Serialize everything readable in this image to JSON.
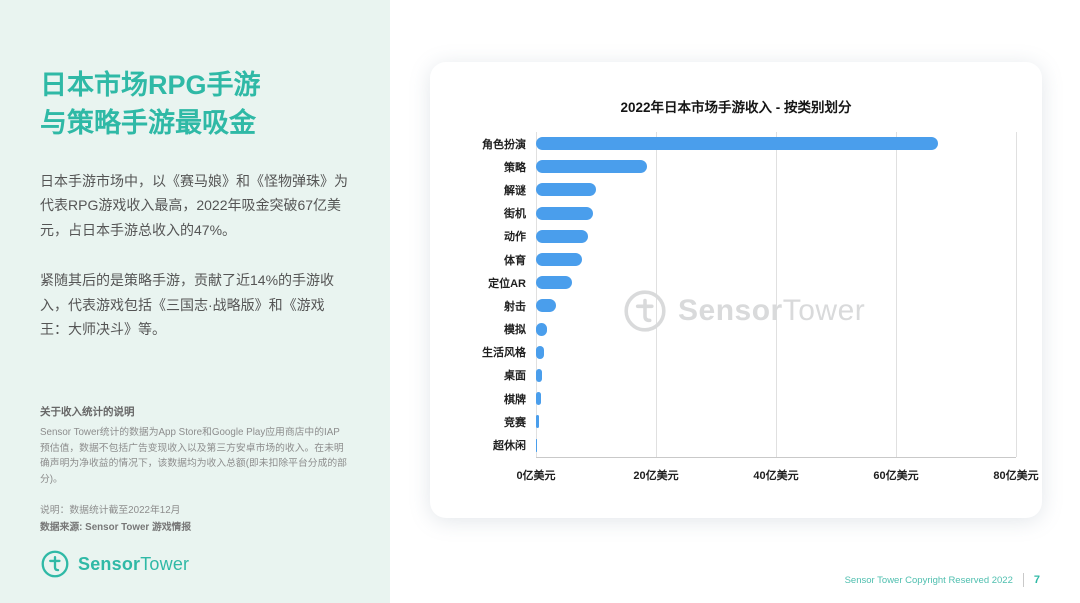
{
  "sidebar": {
    "title_line1": "日本市场RPG手游",
    "title_line2": "与策略手游最吸金",
    "para1": "日本手游市场中，以《赛马娘》和《怪物弹珠》为代表RPG游戏收入最高，2022年吸金突破67亿美元，占日本手游总收入的47%。",
    "para2": "紧随其后的是策略手游，贡献了近14%的手游收入，代表游戏包括《三国志·战略版》和《游戏王：大师决斗》等。",
    "note_title": "关于收入统计的说明",
    "note_body": "Sensor Tower统计的数据为App Store和Google Play应用商店中的IAP预估值，数据不包括广告变现收入以及第三方安卓市场的收入。在未明确声明为净收益的情况下，该数据均为收入总额(即未扣除平台分成的部分)。",
    "note_line1": "说明：数据统计截至2022年12月",
    "note_line2": "数据来源: Sensor Tower 游戏情报",
    "logo_bold": "Sensor",
    "logo_light": "Tower"
  },
  "chart_data": {
    "type": "bar",
    "orientation": "horizontal",
    "title": "2022年日本市场手游收入 - 按类别划分",
    "categories": [
      "角色扮演",
      "策略",
      "解谜",
      "街机",
      "动作",
      "体育",
      "定位AR",
      "射击",
      "模拟",
      "生活风格",
      "桌面",
      "棋牌",
      "竞赛",
      "超休闲"
    ],
    "values": [
      67,
      18.5,
      10,
      9.5,
      8.6,
      7.7,
      6,
      3.3,
      1.9,
      1.4,
      1.0,
      0.8,
      0.5,
      0.1
    ],
    "unit": "亿美元",
    "x_ticks": [
      "0亿美元",
      "20亿美元",
      "40亿美元",
      "60亿美元",
      "80亿美元"
    ],
    "xlim": [
      0,
      80
    ],
    "grid": true,
    "bar_color": "#4A9EEC",
    "watermark_bold": "Sensor",
    "watermark_light": "Tower"
  },
  "footer": {
    "copyright": "Sensor Tower Copyright Reserved 2022",
    "page": "7"
  },
  "colors": {
    "accent_teal": "#2FB9A6",
    "sidebar_bg": "#E9F4F0",
    "bar_blue": "#4A9EEC",
    "watermark_gray": "#D9DADB"
  }
}
